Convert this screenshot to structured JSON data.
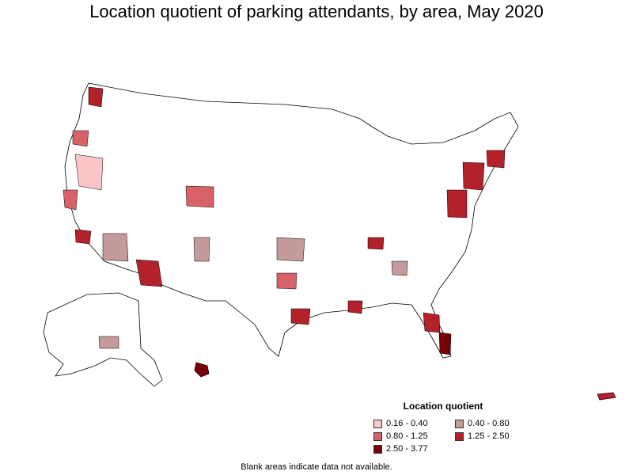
{
  "title": "Location quotient of parking attendants, by area, May 2020",
  "legend": {
    "title": "Location quotient",
    "items": [
      {
        "label": "0.16 - 0.40",
        "color": "#fcc5c8"
      },
      {
        "label": "0.40 - 0.80",
        "color": "#c49a9a"
      },
      {
        "label": "0.80 - 1.25",
        "color": "#d9626a"
      },
      {
        "label": "1.25 - 2.50",
        "color": "#b3212a"
      },
      {
        "label": "2.50 - 3.77",
        "color": "#7a0008"
      }
    ]
  },
  "footnote": "Blank areas indicate data not available."
}
